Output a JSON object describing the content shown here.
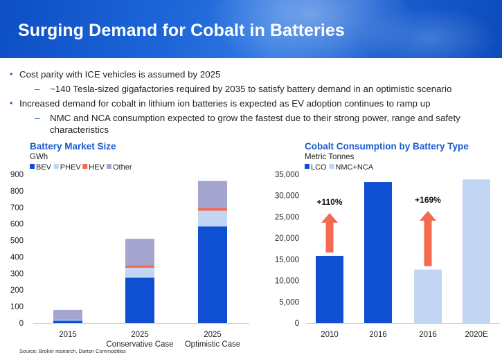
{
  "page": {
    "title": "Surging Demand for Cobalt in Batteries",
    "bullets": [
      {
        "level": 1,
        "text": "Cost parity with ICE vehicles is assumed by 2025"
      },
      {
        "level": 2,
        "text": "~140 Tesla-sized gigafactories required by 2035 to satisfy battery demand in an optimistic scenario"
      },
      {
        "level": 1,
        "text": "Increased demand for cobalt in lithium ion batteries is expected as EV adoption continues to ramp up"
      },
      {
        "level": 2,
        "text": "NMC and NCA consumption expected to grow the fastest due to their strong power, range and safety characteristics"
      }
    ],
    "source": "Source: Broker research, Darton Commodities"
  },
  "chart_data": [
    {
      "type": "bar",
      "stacked": true,
      "title": "Battery Market Size",
      "unit": "GWh",
      "categories": [
        "2015",
        "2025\nConservative Case",
        "2025\nOptimistic Case"
      ],
      "ylim": [
        0,
        900
      ],
      "yticks": [
        0,
        100,
        200,
        300,
        400,
        500,
        600,
        700,
        800,
        900
      ],
      "series": [
        {
          "name": "BEV",
          "color": "#0f4fd1",
          "values": [
            15,
            275,
            585
          ]
        },
        {
          "name": "PHEV",
          "color": "#c2d6f4",
          "values": [
            5,
            60,
            95
          ]
        },
        {
          "name": "HEV",
          "color": "#f26b50",
          "values": [
            0,
            15,
            15
          ]
        },
        {
          "name": "Other",
          "color": "#a4a6cf",
          "values": [
            60,
            160,
            165
          ]
        }
      ],
      "legend": "top-left",
      "grid": false
    },
    {
      "type": "bar",
      "title": "Cobalt Consumption by Battery Type",
      "unit": "Metric Tonnes",
      "categories": [
        "2010",
        "2016",
        "2016",
        "2020E"
      ],
      "ylim": [
        0,
        35000
      ],
      "yticks": [
        "0",
        "5,000",
        "10,000",
        "15,000",
        "20,000",
        "25,000",
        "30,000",
        "35,000"
      ],
      "series": [
        {
          "name": "LCO",
          "color": "#0f4fd1"
        },
        {
          "name": "NMC+NCA",
          "color": "#c2d6f4"
        }
      ],
      "bars": [
        {
          "category": "2010",
          "series": "LCO",
          "value": 15800
        },
        {
          "category": "2016",
          "series": "LCO",
          "value": 33200
        },
        {
          "category": "2016",
          "series": "NMC+NCA",
          "value": 12600
        },
        {
          "category": "2020E",
          "series": "NMC+NCA",
          "value": 33800
        }
      ],
      "annotations": [
        {
          "text": "+110%",
          "arrow_color": "#f26b50",
          "from_bar": 0,
          "to_bar": 1
        },
        {
          "text": "+169%",
          "arrow_color": "#f26b50",
          "from_bar": 2,
          "to_bar": 3
        }
      ],
      "legend": "top-left",
      "grid": false
    }
  ]
}
